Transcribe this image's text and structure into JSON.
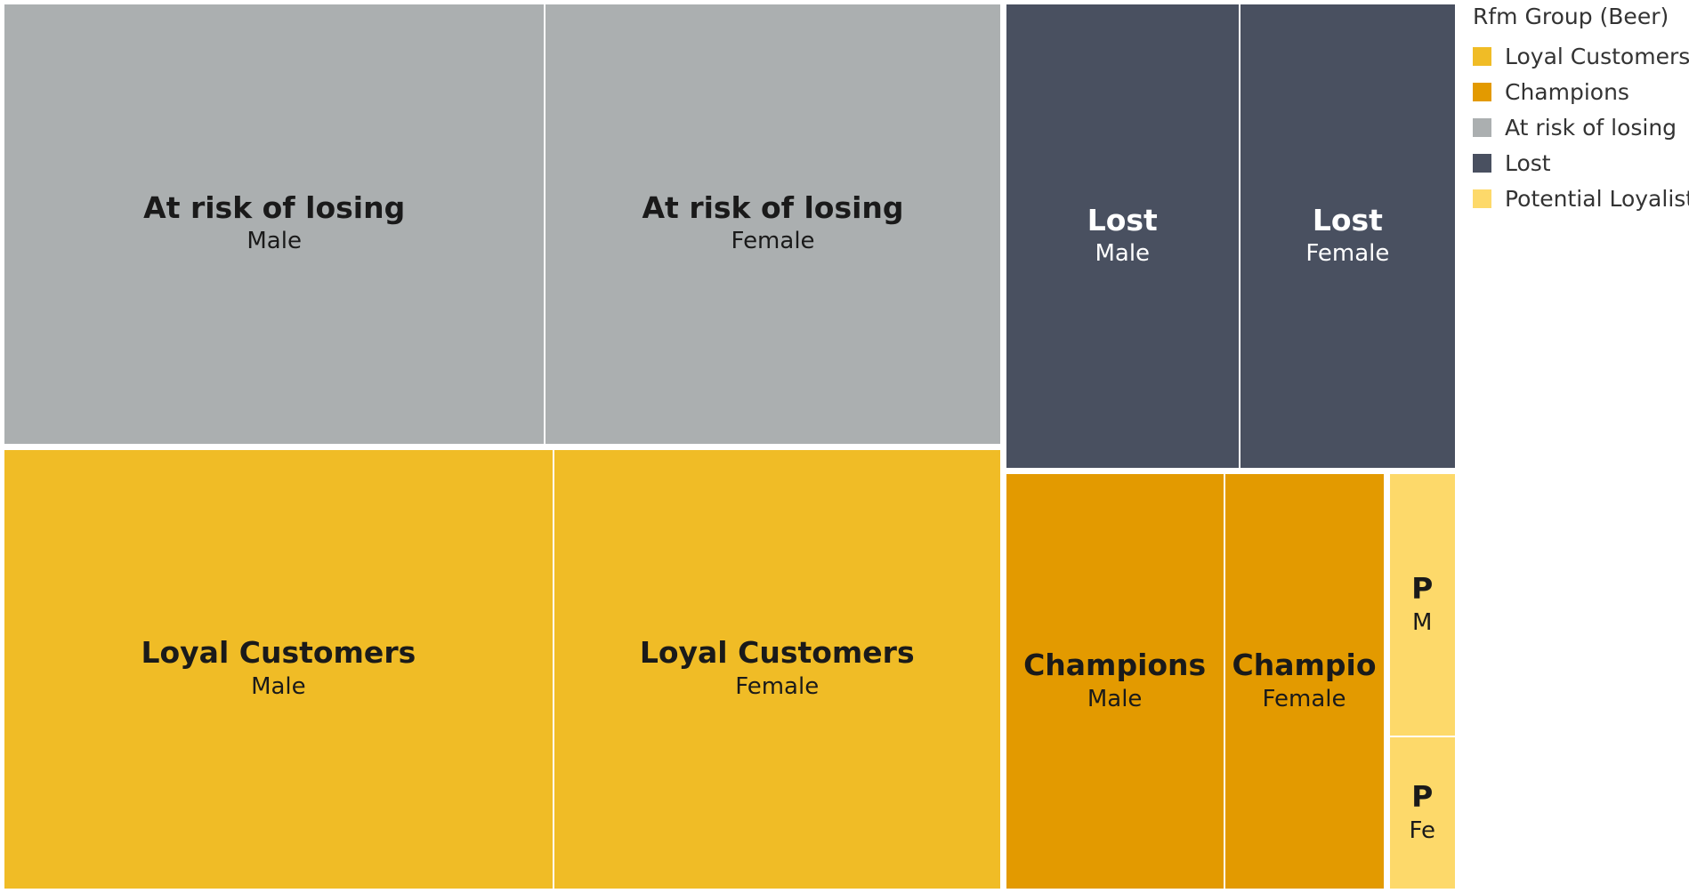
{
  "chart_data": {
    "type": "treemap",
    "legend": {
      "title": "Rfm Group (Beer)",
      "placement": "right",
      "entries": [
        {
          "label": "Loyal Customers",
          "color": "#F0BC26"
        },
        {
          "label": "Champions",
          "color": "#E39A00"
        },
        {
          "label": "At risk of losing",
          "color": "#ABAFB0"
        },
        {
          "label": "Lost",
          "color": "#495060"
        },
        {
          "label": "Potential Loyalist",
          "color": "#FDD96A"
        }
      ]
    },
    "cells": [
      {
        "group": "At risk of losing",
        "gender": "Male",
        "value": 25.9,
        "group_label": "At risk of losing",
        "gender_label": "Male"
      },
      {
        "group": "At risk of losing",
        "gender": "Female",
        "value": 21.8,
        "group_label": "At risk of losing",
        "gender_label": "Female"
      },
      {
        "group": "Loyal Customers",
        "gender": "Male",
        "value": 26.3,
        "group_label": "Loyal Customers",
        "gender_label": "Male"
      },
      {
        "group": "Loyal Customers",
        "gender": "Female",
        "value": 21.4,
        "group_label": "Loyal Customers",
        "gender_label": "Female"
      },
      {
        "group": "Lost",
        "gender": "Male",
        "value": 11.8,
        "group_label": "Lost",
        "gender_label": "Male"
      },
      {
        "group": "Lost",
        "gender": "Female",
        "value": 10.9,
        "group_label": "Lost",
        "gender_label": "Female"
      },
      {
        "group": "Champions",
        "gender": "Male",
        "value": 10.0,
        "group_label": "Champions",
        "gender_label": "Male"
      },
      {
        "group": "Champions",
        "gender": "Female",
        "value": 7.3,
        "group_label": "Champio",
        "gender_label": "Female"
      },
      {
        "group": "Potential Loyalist",
        "gender": "Male",
        "value": 1.9,
        "group_label": "P",
        "gender_label": "M"
      },
      {
        "group": "Potential Loyalist",
        "gender": "Female",
        "value": 1.1,
        "group_label": "P",
        "gender_label": "Fe"
      }
    ]
  }
}
